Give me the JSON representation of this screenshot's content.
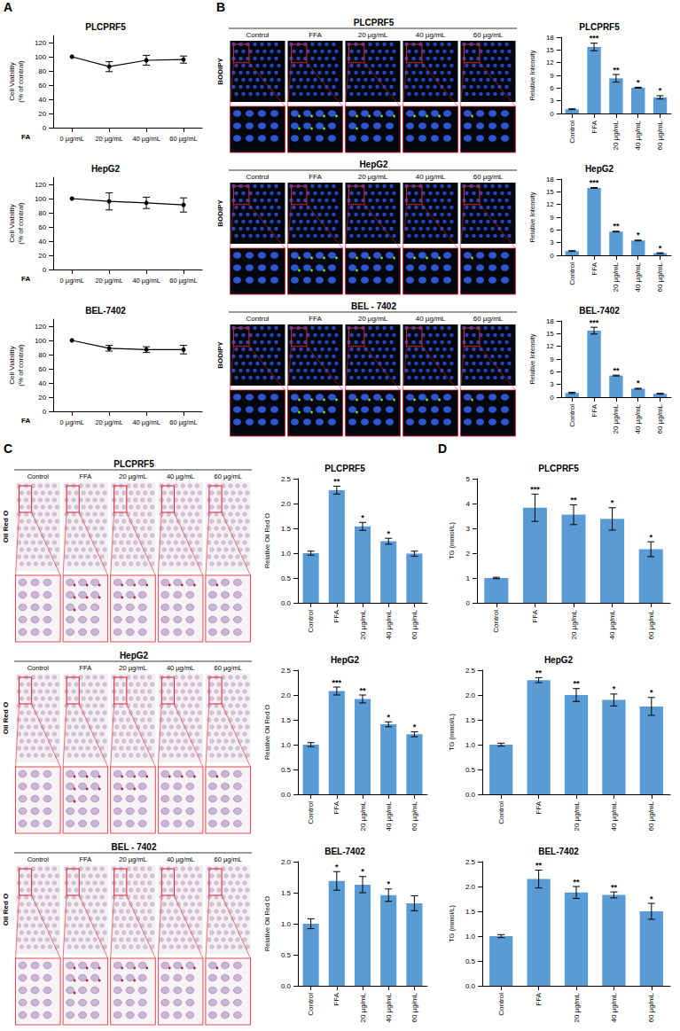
{
  "panel_letters": [
    "A",
    "B",
    "C",
    "D"
  ],
  "chart_data": [
    {
      "type": "line",
      "title": "PLCPRF5",
      "xlabel": "FA",
      "ylabel": "Cell Viability (% of contral)",
      "categories": [
        "0 µg/mL",
        "20 µg/mL",
        "40 µg/mL",
        "60 µg/mL"
      ],
      "values": [
        100,
        86,
        95,
        96
      ],
      "errors": [
        0,
        7,
        7,
        5
      ],
      "color": "#000000",
      "marker": "circle",
      "line_style": "solid",
      "ylim": [
        0,
        130
      ],
      "yticks": [
        0,
        20,
        40,
        60,
        80,
        100,
        120
      ]
    },
    {
      "type": "line",
      "title": "HepG2",
      "xlabel": "FA",
      "ylabel": "Cell Viability (% of contral)",
      "categories": [
        "0 µg/mL",
        "20 µg/mL",
        "40 µg/mL",
        "60 µg/mL"
      ],
      "values": [
        100,
        96,
        94,
        91
      ],
      "errors": [
        0,
        12,
        8,
        10
      ],
      "color": "#000000",
      "marker": "circle",
      "line_style": "solid",
      "ylim": [
        0,
        130
      ],
      "yticks": [
        0,
        20,
        40,
        60,
        80,
        100,
        120
      ]
    },
    {
      "type": "line",
      "title": "BEL-7402",
      "xlabel": "FA",
      "ylabel": "Cell Viability (% of contral)",
      "categories": [
        "0 µg/mL",
        "20 µg/mL",
        "40 µg/mL",
        "60 µg/mL"
      ],
      "values": [
        100,
        89,
        87,
        87
      ],
      "errors": [
        0,
        4,
        4,
        6
      ],
      "color": "#000000",
      "marker": "circle",
      "line_style": "solid",
      "ylim": [
        0,
        130
      ],
      "yticks": [
        0,
        20,
        40,
        60,
        80,
        100,
        120
      ]
    },
    {
      "type": "bar",
      "title": "PLCPRF5",
      "ylabel": "Relative Intensity",
      "categories": [
        "Control",
        "FFA",
        "20 µg/mL",
        "40 µg/mL",
        "60 µg/mL"
      ],
      "values": [
        1.0,
        15.7,
        8.3,
        6.1,
        3.8
      ],
      "errors": [
        0.1,
        0.9,
        0.9,
        0.1,
        0.4
      ],
      "significance": [
        null,
        "***",
        "**",
        "*",
        "*"
      ],
      "color": "#5b9bd5",
      "ylim": [
        0,
        18
      ],
      "yticks": [
        0,
        3,
        6,
        9,
        12,
        15,
        18
      ]
    },
    {
      "type": "bar",
      "title": "HepG2",
      "ylabel": "Relative Intensity",
      "categories": [
        "Control",
        "FFA",
        "20 µg/mL",
        "40 µg/mL",
        "60 µg/mL"
      ],
      "values": [
        1.0,
        15.9,
        5.6,
        3.5,
        0.5
      ],
      "errors": [
        0.1,
        0.1,
        0.1,
        0.1,
        0.1
      ],
      "significance": [
        null,
        "***",
        "**",
        "*",
        "*"
      ],
      "color": "#5b9bd5",
      "ylim": [
        0,
        18
      ],
      "yticks": [
        0,
        3,
        6,
        9,
        12,
        15,
        18
      ]
    },
    {
      "type": "bar",
      "title": "BEL-7402",
      "ylabel": "Relative Intensity",
      "categories": [
        "Control",
        "FFA",
        "20 µg/mL",
        "40 µg/mL",
        "60 µg/mL"
      ],
      "values": [
        1.0,
        15.7,
        5.1,
        2.0,
        0.8
      ],
      "errors": [
        0.15,
        0.8,
        0.1,
        0.1,
        0.1
      ],
      "significance": [
        null,
        "***",
        "**",
        "*",
        null
      ],
      "color": "#5b9bd5",
      "ylim": [
        0,
        18
      ],
      "yticks": [
        0,
        3,
        6,
        9,
        12,
        15,
        18
      ]
    },
    {
      "type": "bar",
      "title": "PLCPRF5",
      "ylabel": "Relative Oil Red O",
      "categories": [
        "Control",
        "FFA",
        "20 µg/mL",
        "40 µg/mL",
        "60 µg/mL"
      ],
      "values": [
        1.0,
        2.27,
        1.54,
        1.24,
        0.99
      ],
      "errors": [
        0.04,
        0.08,
        0.08,
        0.06,
        0.05
      ],
      "significance": [
        null,
        "**",
        "*",
        "*",
        null
      ],
      "color": "#5b9bd5",
      "ylim": [
        0,
        2.5
      ],
      "yticks": [
        {
          "value": 0,
          "label": "0.0"
        },
        0.5,
        {
          "value": 1,
          "label": "1.0"
        },
        1.5,
        {
          "value": 2,
          "label": "2.0"
        },
        2.5
      ]
    },
    {
      "type": "bar",
      "title": "HepG2",
      "ylabel": "Relative Oil Red O",
      "categories": [
        "Control",
        "FFA",
        "20 µg/mL",
        "40 µg/mL",
        "60 µg/mL"
      ],
      "values": [
        1.0,
        2.08,
        1.92,
        1.41,
        1.21
      ],
      "errors": [
        0.04,
        0.08,
        0.08,
        0.05,
        0.05
      ],
      "significance": [
        null,
        "***",
        "**",
        "*",
        "*"
      ],
      "color": "#5b9bd5",
      "ylim": [
        0,
        2.5
      ],
      "yticks": [
        {
          "value": 0,
          "label": "0.0"
        },
        0.5,
        {
          "value": 1,
          "label": "1.0"
        },
        1.5,
        {
          "value": 2,
          "label": "2.0"
        },
        2.5
      ]
    },
    {
      "type": "bar",
      "title": "BEL-7402",
      "ylabel": "Relative Oil Red O",
      "categories": [
        "Control",
        "FFA",
        "20 µg/mL",
        "40 µg/mL",
        "60 µg/mL"
      ],
      "values": [
        1.0,
        1.69,
        1.63,
        1.46,
        1.33
      ],
      "errors": [
        0.08,
        0.15,
        0.13,
        0.1,
        0.12
      ],
      "significance": [
        null,
        "*",
        "*",
        "*",
        null
      ],
      "color": "#5b9bd5",
      "ylim": [
        0,
        2.0
      ],
      "yticks": [
        {
          "value": 0,
          "label": "0.0"
        },
        0.5,
        {
          "value": 1,
          "label": "1.0"
        },
        1.5,
        {
          "value": 2,
          "label": "2.0"
        }
      ]
    },
    {
      "type": "bar",
      "title": "PLCPRF5",
      "ylabel": "TG (mmol/L)",
      "categories": [
        "Control",
        "FFA",
        "20 µg/mL",
        "40 µg/mL",
        "60 µg/mL"
      ],
      "values": [
        1.0,
        3.83,
        3.55,
        3.38,
        2.16
      ],
      "errors": [
        0.03,
        0.55,
        0.4,
        0.45,
        0.3
      ],
      "significance": [
        null,
        "***",
        "**",
        "*",
        "*"
      ],
      "color": "#5b9bd5",
      "ylim": [
        0,
        5
      ],
      "yticks": [
        0,
        1,
        2,
        3,
        4,
        5
      ]
    },
    {
      "type": "bar",
      "title": "HepG2",
      "ylabel": "TG (mmol/L)",
      "categories": [
        "Control",
        "FFA",
        "20 µg/mL",
        "40 µg/mL",
        "60 µg/mL"
      ],
      "values": [
        1.0,
        2.3,
        2.0,
        1.9,
        1.77
      ],
      "errors": [
        0.03,
        0.05,
        0.13,
        0.12,
        0.18
      ],
      "significance": [
        null,
        "**",
        "**",
        "*",
        "*"
      ],
      "color": "#5b9bd5",
      "ylim": [
        0,
        2.5
      ],
      "yticks": [
        {
          "value": 0,
          "label": "0.0"
        },
        0.5,
        {
          "value": 1,
          "label": "1.0"
        },
        1.5,
        {
          "value": 2,
          "label": "2.0"
        },
        2.5
      ]
    },
    {
      "type": "bar",
      "title": "BEL-7402",
      "ylabel": "TG (mmol/L)",
      "categories": [
        "Control",
        "FFA",
        "20 µg/mL",
        "40 µg/mL",
        "60 µg/mL"
      ],
      "values": [
        1.0,
        2.15,
        1.88,
        1.83,
        1.5
      ],
      "errors": [
        0.03,
        0.18,
        0.12,
        0.06,
        0.16
      ],
      "significance": [
        null,
        "**",
        "**",
        "**",
        "*"
      ],
      "color": "#5b9bd5",
      "ylim": [
        0,
        2.5
      ],
      "yticks": [
        {
          "value": 0,
          "label": "0.0"
        },
        0.5,
        {
          "value": 1,
          "label": "1.0"
        },
        1.5,
        {
          "value": 2,
          "label": "2.0"
        },
        2.5
      ]
    }
  ],
  "image_panels": [
    {
      "stain": "BODIPY",
      "title": "PLCPRF5",
      "columns": [
        "Control",
        "FFA",
        "20 µg/mL",
        "40 µg/mL",
        "60 µg/mL"
      ]
    },
    {
      "stain": "BODIPY",
      "title": "HepG2",
      "columns": [
        "Control",
        "FFA",
        "20 µg/mL",
        "40 µg/mL",
        "60 µg/mL"
      ]
    },
    {
      "stain": "BODIPY",
      "title": "BEL - 7402",
      "columns": [
        "Control",
        "FFA",
        "20 µg/mL",
        "40 µg/mL",
        "60 µg/mL"
      ]
    },
    {
      "stain": "Oil Red O",
      "title": "PLCPRF5",
      "columns": [
        "Control",
        "FFA",
        "20 µg/mL",
        "40 µg/mL",
        "60 µg/mL"
      ]
    },
    {
      "stain": "Oil Red O",
      "title": "HepG2",
      "columns": [
        "Control",
        "FFA",
        "20 µg/mL",
        "40 µg/mL",
        "60 µg/mL"
      ]
    },
    {
      "stain": "Oil Red O",
      "title": "BEL - 7402",
      "columns": [
        "Control",
        "FFA",
        "20 µg/mL",
        "40 µg/mL",
        "60 µg/mL"
      ]
    }
  ]
}
